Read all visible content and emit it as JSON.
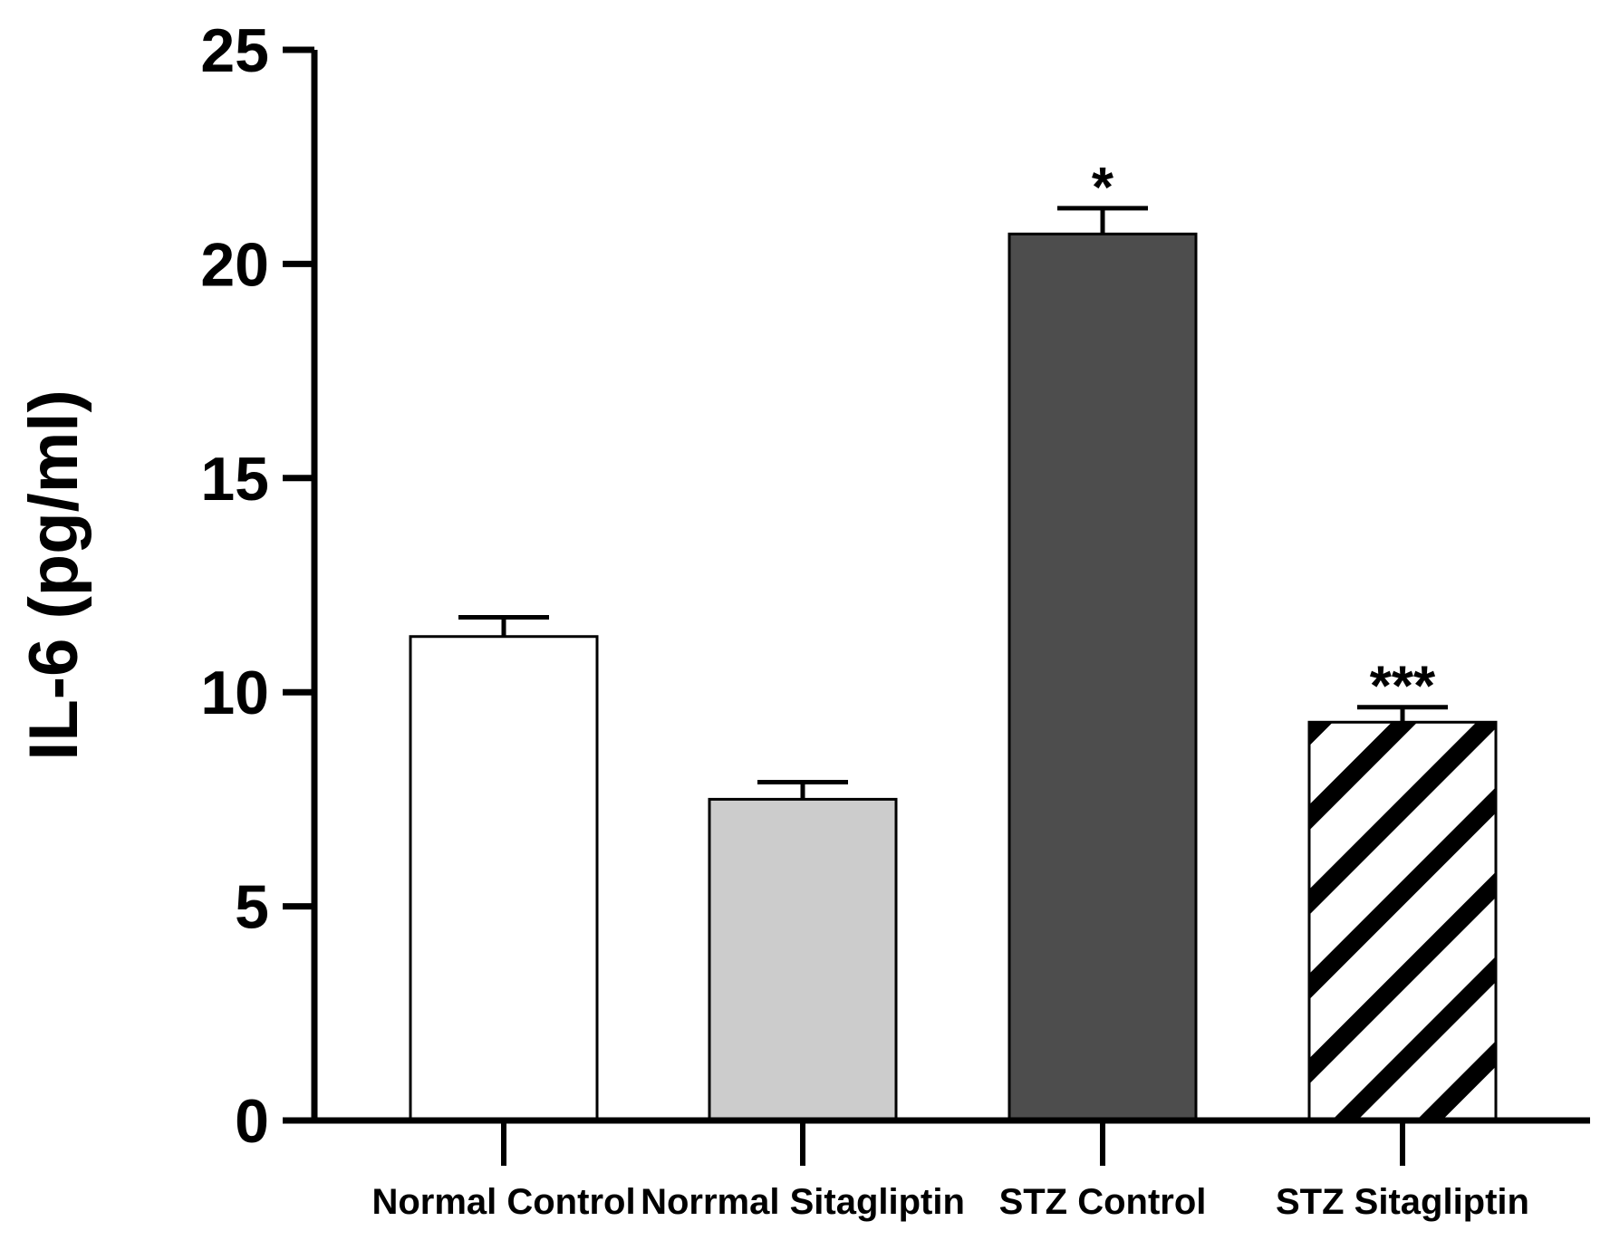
{
  "chart_data": {
    "type": "bar",
    "title": "",
    "xlabel": "",
    "ylabel": "IL-6 (pg/ml)",
    "ylim": [
      0,
      25
    ],
    "yticks": [
      0,
      5,
      10,
      15,
      20,
      25
    ],
    "categories": [
      "Normal Control",
      "Norrmal Sitagliptin",
      "STZ Control",
      "STZ Sitagliptin"
    ],
    "values": [
      11.3,
      7.5,
      20.7,
      9.3
    ],
    "errors": [
      0.45,
      0.4,
      0.6,
      0.35
    ],
    "significance": [
      "",
      "",
      "*",
      "***"
    ],
    "fills": [
      "#ffffff",
      "#cccccc",
      "#4d4d4d",
      "hatch"
    ],
    "grid": false
  }
}
